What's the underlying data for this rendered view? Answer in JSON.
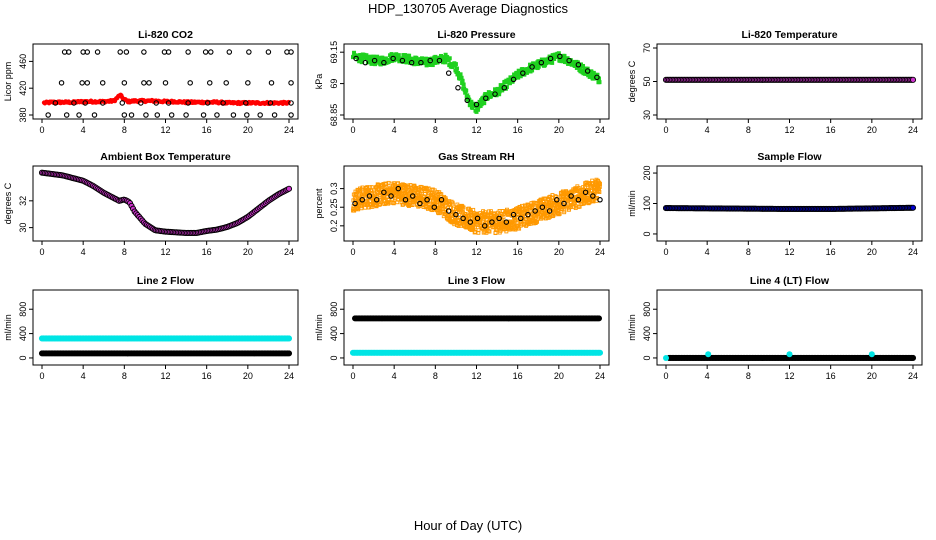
{
  "figure": {
    "title": "HDP_130705  Average Diagnostics",
    "xlabel": "Hour of Day (UTC)"
  },
  "chart_data": [
    {
      "type": "scatter",
      "title": "Li-820 CO2",
      "ylabel": "Licor ppm",
      "xlim": [
        0,
        24
      ],
      "ylim": [
        380,
        480
      ],
      "xticks": [
        0,
        4,
        8,
        12,
        16,
        20,
        24
      ],
      "yticks": [
        380,
        420,
        460
      ],
      "series": [
        {
          "name": "co2-mean",
          "style": "line-dots",
          "color": "#ff0000",
          "x": [
            0.2,
            1,
            2,
            3,
            4,
            5,
            6,
            7,
            7.6,
            7.9,
            8.4,
            9,
            10,
            11,
            12,
            13,
            14,
            15,
            16,
            17,
            18,
            19,
            20,
            21,
            22,
            23,
            24
          ],
          "y": [
            398,
            399,
            399,
            399,
            400,
            400,
            400,
            401,
            410,
            404,
            400,
            401,
            401,
            401,
            400,
            400,
            399,
            399,
            399,
            399,
            398,
            398,
            398,
            398,
            398,
            398,
            398
          ]
        },
        {
          "name": "co2-top-points",
          "style": "circle",
          "color": "#000000",
          "x": [
            2.2,
            2.6,
            4,
            4.4,
            5.4,
            7.6,
            8.2,
            9.9,
            11.9,
            12.3,
            14.2,
            15.9,
            16.4,
            18.2,
            20.1,
            22,
            23.8,
            24.2
          ],
          "y": [
            474,
            474,
            474,
            474,
            474,
            474,
            474,
            474,
            474,
            474,
            474,
            474,
            474,
            474,
            474,
            474,
            474,
            474
          ]
        },
        {
          "name": "co2-upper-points",
          "style": "circle",
          "color": "#000000",
          "x": [
            1.9,
            3.9,
            4.4,
            5.9,
            8,
            9.9,
            10.4,
            12,
            14.4,
            16.3,
            17.9,
            20,
            22.3,
            24.2
          ],
          "y": [
            428,
            428,
            428,
            428,
            428,
            428,
            428,
            428,
            428,
            428,
            428,
            428,
            428,
            428
          ]
        },
        {
          "name": "co2-mid-points",
          "style": "circle",
          "color": "#000000",
          "x": [
            1.3,
            3.1,
            4.2,
            5.9,
            7.8,
            9.6,
            11.1,
            12.3,
            14.2,
            16.1,
            17.6,
            19.8,
            22.2,
            24.2
          ],
          "y": [
            398,
            398,
            398,
            398,
            398,
            398,
            398,
            398,
            398,
            398,
            398,
            398,
            398,
            398
          ]
        },
        {
          "name": "co2-low-points",
          "style": "circle",
          "color": "#000000",
          "x": [
            0.6,
            2.4,
            3.6,
            5.1,
            8,
            8.7,
            10.1,
            11.2,
            12.6,
            14,
            15.7,
            17,
            18.6,
            19.9,
            21.2,
            22.6,
            24.2
          ],
          "y": [
            380,
            380,
            380,
            380,
            380,
            380,
            380,
            380,
            380,
            380,
            380,
            380,
            380,
            380,
            380,
            380,
            380
          ]
        }
      ]
    },
    {
      "type": "scatter",
      "title": "Li-820 Pressure",
      "ylabel": "kPa",
      "xlim": [
        0,
        24
      ],
      "ylim": [
        68.85,
        69.17
      ],
      "xticks": [
        0,
        4,
        8,
        12,
        16,
        20,
        24
      ],
      "yticks": [
        68.85,
        69.0,
        69.15
      ],
      "series": [
        {
          "name": "pressure-mean",
          "style": "band",
          "color": "#1fd11f",
          "x": [
            0,
            1,
            2,
            3,
            4,
            5,
            6,
            7,
            8,
            9,
            10,
            10.5,
            11,
            11.5,
            12,
            12.5,
            13,
            14,
            15,
            16,
            17,
            18,
            19,
            20,
            21,
            22,
            23,
            24
          ],
          "y": [
            69.13,
            69.12,
            69.11,
            69.11,
            69.13,
            69.12,
            69.11,
            69.1,
            69.11,
            69.12,
            69.08,
            69.02,
            68.95,
            68.9,
            68.88,
            68.91,
            68.94,
            68.96,
            69.0,
            69.04,
            69.07,
            69.09,
            69.11,
            69.13,
            69.11,
            69.08,
            69.05,
            69.02
          ]
        },
        {
          "name": "pressure-points",
          "style": "circle",
          "color": "#000000",
          "x": [
            0.3,
            1.2,
            2.1,
            3.0,
            3.9,
            4.8,
            5.7,
            6.6,
            7.5,
            8.4,
            9.3,
            10.2,
            11.1,
            12.0,
            12.9,
            13.8,
            14.7,
            15.6,
            16.5,
            17.4,
            18.3,
            19.2,
            20.1,
            21.0,
            21.9,
            22.8,
            23.7
          ],
          "y": [
            69.12,
            69.1,
            69.11,
            69.1,
            69.12,
            69.11,
            69.1,
            69.1,
            69.11,
            69.11,
            69.05,
            68.98,
            68.92,
            68.9,
            68.93,
            68.95,
            68.98,
            69.02,
            69.05,
            69.08,
            69.1,
            69.12,
            69.13,
            69.11,
            69.09,
            69.06,
            69.03
          ]
        }
      ]
    },
    {
      "type": "scatter",
      "title": "Li-820 Temperature",
      "ylabel": "degrees C",
      "xlim": [
        0,
        24
      ],
      "ylim": [
        30,
        70
      ],
      "xticks": [
        0,
        4,
        8,
        12,
        16,
        20,
        24
      ],
      "yticks": [
        30,
        50,
        70
      ],
      "series": [
        {
          "name": "li820-temp",
          "style": "dense-circle",
          "color": "#cc33cc",
          "edge": "#000000",
          "x": [
            0,
            24
          ],
          "y": [
            51,
            51
          ]
        }
      ]
    },
    {
      "type": "scatter",
      "title": "Ambient Box Temperature",
      "ylabel": "degrees C",
      "xlim": [
        0,
        24
      ],
      "ylim": [
        29.3,
        34.3
      ],
      "xticks": [
        0,
        4,
        8,
        12,
        16,
        20,
        24
      ],
      "yticks": [
        30,
        32
      ],
      "series": [
        {
          "name": "box-temp",
          "style": "dense-circle",
          "color": "#cc33cc",
          "edge": "#000000",
          "x": [
            0,
            1,
            2,
            3,
            4,
            5,
            6,
            7,
            7.5,
            8,
            8.5,
            9,
            10,
            11,
            12,
            13,
            14,
            15,
            16,
            17,
            18,
            19,
            20,
            21,
            22,
            23,
            24
          ],
          "y": [
            34.1,
            34.0,
            33.9,
            33.7,
            33.5,
            33.1,
            32.6,
            32.2,
            32.0,
            32.1,
            31.9,
            31.2,
            30.3,
            29.8,
            29.7,
            29.65,
            29.6,
            29.6,
            29.75,
            29.85,
            30.05,
            30.35,
            30.8,
            31.4,
            32.0,
            32.5,
            32.9
          ]
        }
      ]
    },
    {
      "type": "scatter",
      "title": "Gas Stream RH",
      "ylabel": "percent",
      "xlim": [
        0,
        24
      ],
      "ylim": [
        0.17,
        0.35
      ],
      "xticks": [
        0,
        4,
        8,
        12,
        16,
        20,
        24
      ],
      "yticks": [
        0.2,
        0.25,
        0.3
      ],
      "series": [
        {
          "name": "rh-scatter",
          "style": "noise-square",
          "color": "#ff9900",
          "x": [
            0,
            2,
            4,
            6,
            8,
            10,
            12,
            14,
            16,
            18,
            20,
            22,
            24
          ],
          "y": [
            0.27,
            0.28,
            0.29,
            0.28,
            0.27,
            0.23,
            0.21,
            0.21,
            0.22,
            0.24,
            0.26,
            0.28,
            0.3
          ]
        },
        {
          "name": "rh-points",
          "style": "circle",
          "color": "#000000",
          "x": [
            0.2,
            0.9,
            1.6,
            2.3,
            3.0,
            3.7,
            4.4,
            5.1,
            5.8,
            6.5,
            7.2,
            7.9,
            8.6,
            9.3,
            10.0,
            10.7,
            11.4,
            12.1,
            12.8,
            13.5,
            14.2,
            14.9,
            15.6,
            16.3,
            17.0,
            17.7,
            18.4,
            19.1,
            19.8,
            20.5,
            21.2,
            21.9,
            22.6,
            23.3,
            24.0
          ],
          "y": [
            0.26,
            0.27,
            0.28,
            0.27,
            0.29,
            0.28,
            0.3,
            0.27,
            0.28,
            0.26,
            0.27,
            0.25,
            0.27,
            0.24,
            0.23,
            0.22,
            0.21,
            0.22,
            0.2,
            0.21,
            0.22,
            0.21,
            0.23,
            0.22,
            0.23,
            0.24,
            0.25,
            0.24,
            0.27,
            0.26,
            0.28,
            0.27,
            0.29,
            0.28,
            0.27
          ]
        }
      ]
    },
    {
      "type": "scatter",
      "title": "Sample Flow",
      "ylabel": "ml/min",
      "xlim": [
        0,
        24
      ],
      "ylim": [
        -10,
        210
      ],
      "xticks": [
        0,
        4,
        8,
        12,
        16,
        20,
        24
      ],
      "yticks": [
        0,
        100,
        200
      ],
      "series": [
        {
          "name": "sample-flow",
          "style": "dense-circle",
          "color": "#0000cc",
          "edge": "#000000",
          "x": [
            0,
            4,
            8,
            12,
            16,
            20,
            24
          ],
          "y": [
            85,
            84,
            83,
            82,
            82,
            84,
            86
          ]
        }
      ]
    },
    {
      "type": "scatter",
      "title": "Line 2 Flow",
      "ylabel": "ml/min",
      "xlim": [
        0,
        24
      ],
      "ylim": [
        -50,
        1050
      ],
      "xticks": [
        0,
        4,
        8,
        12,
        16,
        20,
        24
      ],
      "yticks": [
        0,
        400,
        800
      ],
      "series": [
        {
          "name": "line2-setpoint",
          "style": "dense-circle",
          "color": "#00e5e5",
          "edge": "#00e5e5",
          "x": [
            0,
            24
          ],
          "y": [
            320,
            320
          ]
        },
        {
          "name": "line2-flow",
          "style": "dense-circle",
          "color": "#000000",
          "edge": "#000000",
          "x": [
            0,
            24
          ],
          "y": [
            75,
            75
          ]
        }
      ]
    },
    {
      "type": "scatter",
      "title": "Line 3 Flow",
      "ylabel": "ml/min",
      "xlim": [
        0,
        24
      ],
      "ylim": [
        -50,
        1050
      ],
      "xticks": [
        0,
        4,
        8,
        12,
        16,
        20,
        24
      ],
      "yticks": [
        0,
        400,
        800
      ],
      "series": [
        {
          "name": "line3-flow",
          "style": "dense-circle",
          "color": "#000000",
          "edge": "#000000",
          "x": [
            0.2,
            24
          ],
          "y": [
            650,
            650
          ]
        },
        {
          "name": "line3-setpoint",
          "style": "dense-circle",
          "color": "#00e5e5",
          "edge": "#00e5e5",
          "x": [
            0,
            24
          ],
          "y": [
            85,
            85
          ]
        }
      ]
    },
    {
      "type": "scatter",
      "title": "Line 4 (LT) Flow",
      "ylabel": "ml/min",
      "xlim": [
        0,
        24
      ],
      "ylim": [
        -50,
        1050
      ],
      "xticks": [
        0,
        4,
        8,
        12,
        16,
        20,
        24
      ],
      "yticks": [
        0,
        400,
        800
      ],
      "series": [
        {
          "name": "line4-flow",
          "style": "dense-circle",
          "color": "#000000",
          "edge": "#000000",
          "x": [
            0.3,
            24
          ],
          "y": [
            0,
            0
          ]
        },
        {
          "name": "line4-spikes",
          "style": "circle-fill",
          "color": "#00e5e5",
          "x": [
            0,
            4.1,
            12.0,
            20.0
          ],
          "y": [
            0,
            60,
            60,
            60
          ]
        }
      ]
    }
  ]
}
